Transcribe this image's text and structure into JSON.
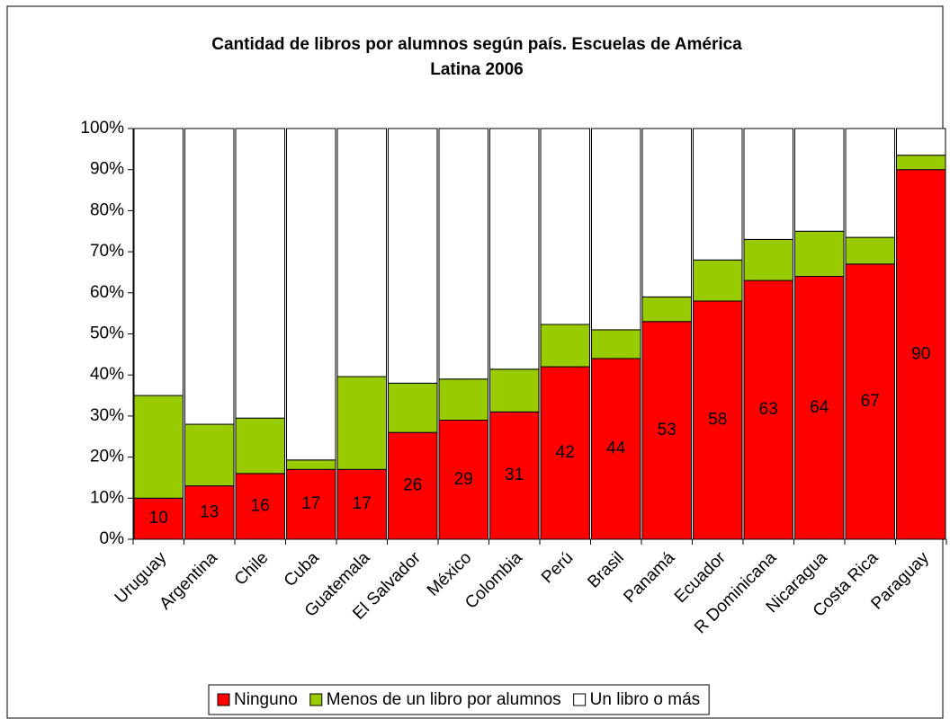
{
  "chart_data": {
    "type": "stacked_bar_100",
    "title": "Cantidad de libros por alumnos según país. Escuelas de América Latina 2006",
    "categories": [
      "Uruguay",
      "Argentina",
      "Chile",
      "Cuba",
      "Guatemala",
      "El Salvador",
      "México",
      "Colombia",
      "Perú",
      "Brasil",
      "Panamá",
      "Ecuador",
      "R Dominicana",
      "Nicaragua",
      "Costa Rica",
      "Paraguay"
    ],
    "series": [
      {
        "name": "Ninguno",
        "color": "#ff0000",
        "values": [
          10,
          13,
          16,
          17,
          17,
          26,
          29,
          31,
          42,
          44,
          53,
          58,
          63,
          64,
          67,
          90
        ]
      },
      {
        "name": "Menos de un libro por alumnos",
        "color": "#99cc00",
        "values": [
          25,
          15,
          13.5,
          2.3,
          22.6,
          12,
          10,
          10.4,
          10.3,
          7,
          6,
          10,
          10,
          11,
          6.5,
          3.5
        ]
      },
      {
        "name": "Un libro o más",
        "color": "#ffffff",
        "values": [
          65,
          72,
          70.5,
          80.7,
          60.4,
          62,
          61,
          58.6,
          47.7,
          49,
          41,
          32,
          27,
          25,
          26.5,
          6.5
        ]
      }
    ],
    "data_labels_series": 0,
    "ylim": [
      0,
      100
    ],
    "yticks": [
      {
        "value": 0,
        "label": "0%"
      },
      {
        "value": 10,
        "label": "10%"
      },
      {
        "value": 20,
        "label": "20%"
      },
      {
        "value": 30,
        "label": "30%"
      },
      {
        "value": 40,
        "label": "40%"
      },
      {
        "value": 50,
        "label": "50%"
      },
      {
        "value": 60,
        "label": "60%"
      },
      {
        "value": 70,
        "label": "70%"
      },
      {
        "value": 80,
        "label": "80%"
      },
      {
        "value": 90,
        "label": "90%"
      },
      {
        "value": 100,
        "label": "100%"
      }
    ],
    "legend": "bottom"
  }
}
